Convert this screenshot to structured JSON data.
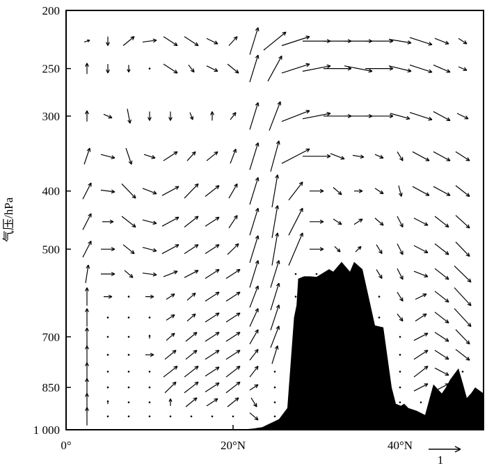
{
  "chart_data": {
    "type": "vector-field",
    "title": "",
    "xlabel": "",
    "ylabel": "气压/hPa",
    "x_ticks": [
      "0°",
      "20°N",
      "40°N"
    ],
    "x_tick_values": [
      0,
      20,
      40
    ],
    "xlim": [
      0,
      50
    ],
    "y_scale": "log",
    "y_ticks": [
      "200",
      "250",
      "300",
      "400",
      "500",
      "700",
      "850",
      "1 000"
    ],
    "y_tick_values": [
      200,
      250,
      300,
      400,
      500,
      700,
      850,
      1000
    ],
    "ylim": [
      1000,
      200
    ],
    "reference_vector": {
      "label": "1",
      "magnitude": 1
    },
    "terrain_color": "#000000",
    "arrow_color": "#000000",
    "terrain": {
      "lat": [
        0,
        21,
        22.5,
        23.5,
        24.5,
        25.5,
        26.5,
        27.3,
        27.6,
        27.8,
        28.5,
        29.2,
        30,
        31.5,
        32,
        33,
        34,
        34.5,
        35.5,
        36,
        37,
        38,
        39,
        39.5,
        40.1,
        40.5,
        41,
        42,
        43,
        44,
        45,
        45.5,
        46,
        47,
        47.5,
        48,
        48.5,
        49,
        50
      ],
      "pressure": [
        1000,
        1000,
        995,
        990,
        975,
        960,
        920,
        650,
        620,
        560,
        555,
        555,
        556,
        540,
        545,
        525,
        545,
        525,
        540,
        580,
        670,
        675,
        850,
        905,
        912,
        905,
        920,
        930,
        945,
        840,
        870,
        850,
        825,
        790,
        835,
        885,
        870,
        850,
        870
      ]
    },
    "levels": [
      225,
      250,
      300,
      350,
      400,
      450,
      500,
      550,
      600,
      650,
      700,
      750,
      800,
      850,
      900,
      950
    ],
    "series": [
      {
        "lat": 2.5,
        "u": [
          0.2,
          0,
          0,
          0.2,
          0.3,
          0.3,
          0.3,
          0.1,
          0,
          0,
          0,
          0,
          0,
          0,
          0,
          0
        ],
        "w": [
          0.1,
          0.6,
          0.6,
          0.9,
          0.9,
          0.9,
          0.9,
          1,
          1,
          1,
          1,
          1,
          1,
          1,
          1,
          1
        ]
      },
      {
        "lat": 5,
        "u": [
          0,
          0,
          0.3,
          0.5,
          0.5,
          0.4,
          0.5,
          0.5,
          0.3,
          0,
          0,
          0,
          0,
          0,
          0,
          0
        ],
        "w": [
          -0.5,
          -0.5,
          -0.2,
          -0.2,
          -0.1,
          0,
          0,
          0,
          0,
          0,
          0,
          0,
          0,
          0,
          0.2,
          0
        ]
      },
      {
        "lat": 7.5,
        "u": [
          0.4,
          0,
          0.1,
          0.2,
          0.5,
          0.5,
          0.4,
          0.3,
          0,
          0,
          0,
          0,
          0,
          0,
          0,
          0
        ],
        "w": [
          0.5,
          -0.4,
          -0.8,
          -0.9,
          -0.8,
          -0.6,
          -0.5,
          -0.4,
          0,
          0,
          0,
          0,
          0,
          0,
          0,
          0
        ]
      },
      {
        "lat": 10,
        "u": [
          0.5,
          0,
          0,
          0.4,
          0.5,
          0.5,
          0.5,
          0.5,
          0.3,
          0,
          0,
          0.3,
          0,
          0,
          0,
          0
        ],
        "w": [
          0.1,
          0,
          -0.5,
          -0.2,
          -0.3,
          -0.2,
          -0.2,
          -0.1,
          0,
          0,
          0.2,
          0,
          0,
          0,
          0,
          0
        ]
      },
      {
        "lat": 12.5,
        "u": [
          0.5,
          0.5,
          0,
          0.5,
          0.6,
          0.6,
          0.6,
          0.5,
          0.3,
          0.3,
          0.3,
          0.4,
          0.5,
          0.4,
          0,
          0
        ],
        "w": [
          -0.5,
          -0.5,
          -0.5,
          0.5,
          0.5,
          0.5,
          0.5,
          0.3,
          0.3,
          0.3,
          0.4,
          0.5,
          0.6,
          0.6,
          0.4,
          0
        ]
      },
      {
        "lat": 15,
        "u": [
          0.5,
          0.2,
          0.1,
          0.3,
          0.5,
          0.5,
          0.5,
          0.5,
          0.3,
          0.3,
          0.4,
          0.4,
          0.5,
          0.5,
          0.4,
          0
        ],
        "w": [
          -0.5,
          -0.4,
          -0.4,
          0.5,
          0.8,
          0.6,
          0.5,
          0.4,
          0.4,
          0.4,
          0.5,
          0.5,
          0.6,
          0.6,
          0.5,
          0
        ]
      },
      {
        "lat": 17.5,
        "u": [
          0.4,
          0.4,
          0,
          0.4,
          0.5,
          0.5,
          0.5,
          0.5,
          0.5,
          0.5,
          0.5,
          0.5,
          0.5,
          0.5,
          0.4,
          0
        ],
        "w": [
          -0.3,
          -0.3,
          0.5,
          0.5,
          0.6,
          0.5,
          0.5,
          0.5,
          0.5,
          0.5,
          0.5,
          0.5,
          0.5,
          0.5,
          0.4,
          0
        ]
      },
      {
        "lat": 20,
        "u": [
          0.3,
          0.4,
          0.2,
          0.2,
          0.3,
          0.3,
          0.4,
          0.5,
          0.5,
          0.5,
          0.5,
          0.5,
          0.5,
          0.5,
          0.4,
          0
        ],
        "w": [
          0.5,
          -0.5,
          0.4,
          0.8,
          0.8,
          0.7,
          0.6,
          0.5,
          0.5,
          0.5,
          0.5,
          0.5,
          0.6,
          0.6,
          0.5,
          0
        ]
      },
      {
        "lat": 22.5,
        "u": [
          0.3,
          0.3,
          0.3,
          0.3,
          0.3,
          0.3,
          0.3,
          0.3,
          0.3,
          0.3,
          0.3,
          0.3,
          0.3,
          0.3,
          0.2,
          0.3
        ],
        "w": [
          1.5,
          1.5,
          1.5,
          1.5,
          1.5,
          1.5,
          1.5,
          1.5,
          1.2,
          1,
          0.8,
          0.6,
          0.6,
          0.3,
          -0.5,
          -0.4
        ]
      },
      {
        "lat": 25,
        "u": [
          0.8,
          0.5,
          0.4,
          0.3,
          0.2,
          0.2,
          0.2,
          0.3,
          0.3,
          0.3,
          0.3,
          0.2,
          0,
          0,
          0,
          0
        ],
        "w": [
          1,
          1.4,
          1.6,
          1.7,
          1.8,
          1.8,
          1.8,
          1.5,
          1.5,
          1.4,
          1.2,
          1,
          0,
          0,
          0,
          0
        ]
      },
      {
        "lat": 27.5,
        "u": [
          1,
          1,
          1,
          1,
          0.5,
          0.5,
          0.5,
          0,
          0,
          0,
          0,
          0,
          0,
          0,
          0,
          0
        ],
        "w": [
          0.5,
          0.5,
          0.6,
          0.8,
          1,
          1.5,
          1.8,
          0,
          0,
          0,
          0,
          0,
          0,
          0,
          0,
          0
        ]
      },
      {
        "lat": 30,
        "u": [
          1,
          1,
          1,
          1,
          0.5,
          0.5,
          0.5,
          0,
          0,
          0,
          0,
          0,
          0,
          0,
          0,
          0
        ],
        "w": [
          0,
          0.3,
          0.3,
          0,
          0,
          0,
          0,
          0,
          0,
          0,
          0,
          0,
          0,
          0,
          0,
          0
        ]
      },
      {
        "lat": 32.5,
        "u": [
          1,
          1,
          1,
          0.5,
          0.3,
          0.3,
          0.2,
          0,
          0,
          0,
          0,
          0,
          0,
          0,
          0,
          0
        ],
        "w": [
          0,
          0,
          0,
          -0.3,
          -0.4,
          -0.3,
          -0.3,
          0,
          0,
          0,
          0,
          0,
          0,
          0,
          0,
          0
        ]
      },
      {
        "lat": 35,
        "u": [
          1,
          1,
          1,
          0.4,
          0.3,
          0.3,
          0.2,
          0,
          0,
          0,
          0,
          0,
          0,
          0,
          0,
          0
        ],
        "w": [
          0,
          -0.3,
          0,
          -0.1,
          0,
          0.3,
          0.3,
          0,
          0,
          0,
          0,
          0,
          0,
          0,
          0,
          0
        ]
      },
      {
        "lat": 37.5,
        "u": [
          1,
          1,
          1,
          0.3,
          0.3,
          0.3,
          0.2,
          0.2,
          0,
          0,
          0,
          0,
          0,
          0,
          0,
          0
        ],
        "w": [
          0,
          0,
          0,
          -0.2,
          -0.3,
          -0.4,
          -0.5,
          -0.5,
          0,
          0,
          0,
          0,
          0,
          0,
          0,
          0
        ]
      },
      {
        "lat": 40,
        "u": [
          0.8,
          0.8,
          0.7,
          0.2,
          0.1,
          0.2,
          0.2,
          0.2,
          0.2,
          0.2,
          0,
          0,
          0,
          0,
          0,
          0
        ],
        "w": [
          -0.2,
          -0.3,
          -0.3,
          -0.5,
          -0.6,
          -0.6,
          -0.6,
          -0.6,
          -0.5,
          -0.4,
          0,
          0,
          0,
          0,
          0,
          0
        ]
      },
      {
        "lat": 42.5,
        "u": [
          0.8,
          0.8,
          0.8,
          0.6,
          0.6,
          0.5,
          0.5,
          0.5,
          0.4,
          0.4,
          0.5,
          0.5,
          0.5,
          0.5,
          0,
          0
        ],
        "w": [
          -0.4,
          -0.4,
          -0.4,
          -0.5,
          -0.5,
          -0.4,
          -0.4,
          -0.3,
          0.3,
          0.4,
          0.4,
          0.5,
          0.6,
          0.4,
          0,
          0
        ]
      },
      {
        "lat": 45,
        "u": [
          0.5,
          0.6,
          0.6,
          0.6,
          0.6,
          0.5,
          0.5,
          0.5,
          0.5,
          0.5,
          0.5,
          0.5,
          0.5,
          0.5,
          0,
          0
        ],
        "w": [
          -0.3,
          -0.4,
          -0.5,
          -0.5,
          -0.5,
          -0.6,
          -0.6,
          -0.6,
          -0.6,
          -0.6,
          -0.5,
          -0.5,
          -0.4,
          0.4,
          0,
          0
        ]
      },
      {
        "lat": 47.5,
        "u": [
          0.3,
          0.3,
          0.4,
          0.5,
          0.5,
          0.5,
          0.5,
          0.6,
          0.6,
          0.6,
          0.5,
          0.5,
          0,
          0,
          0,
          0
        ],
        "w": [
          -0.3,
          -0.2,
          -0.3,
          -0.5,
          -0.6,
          -0.7,
          -0.8,
          -0.9,
          -1,
          -1,
          -0.8,
          -0.6,
          0,
          0,
          0,
          0
        ]
      }
    ]
  }
}
